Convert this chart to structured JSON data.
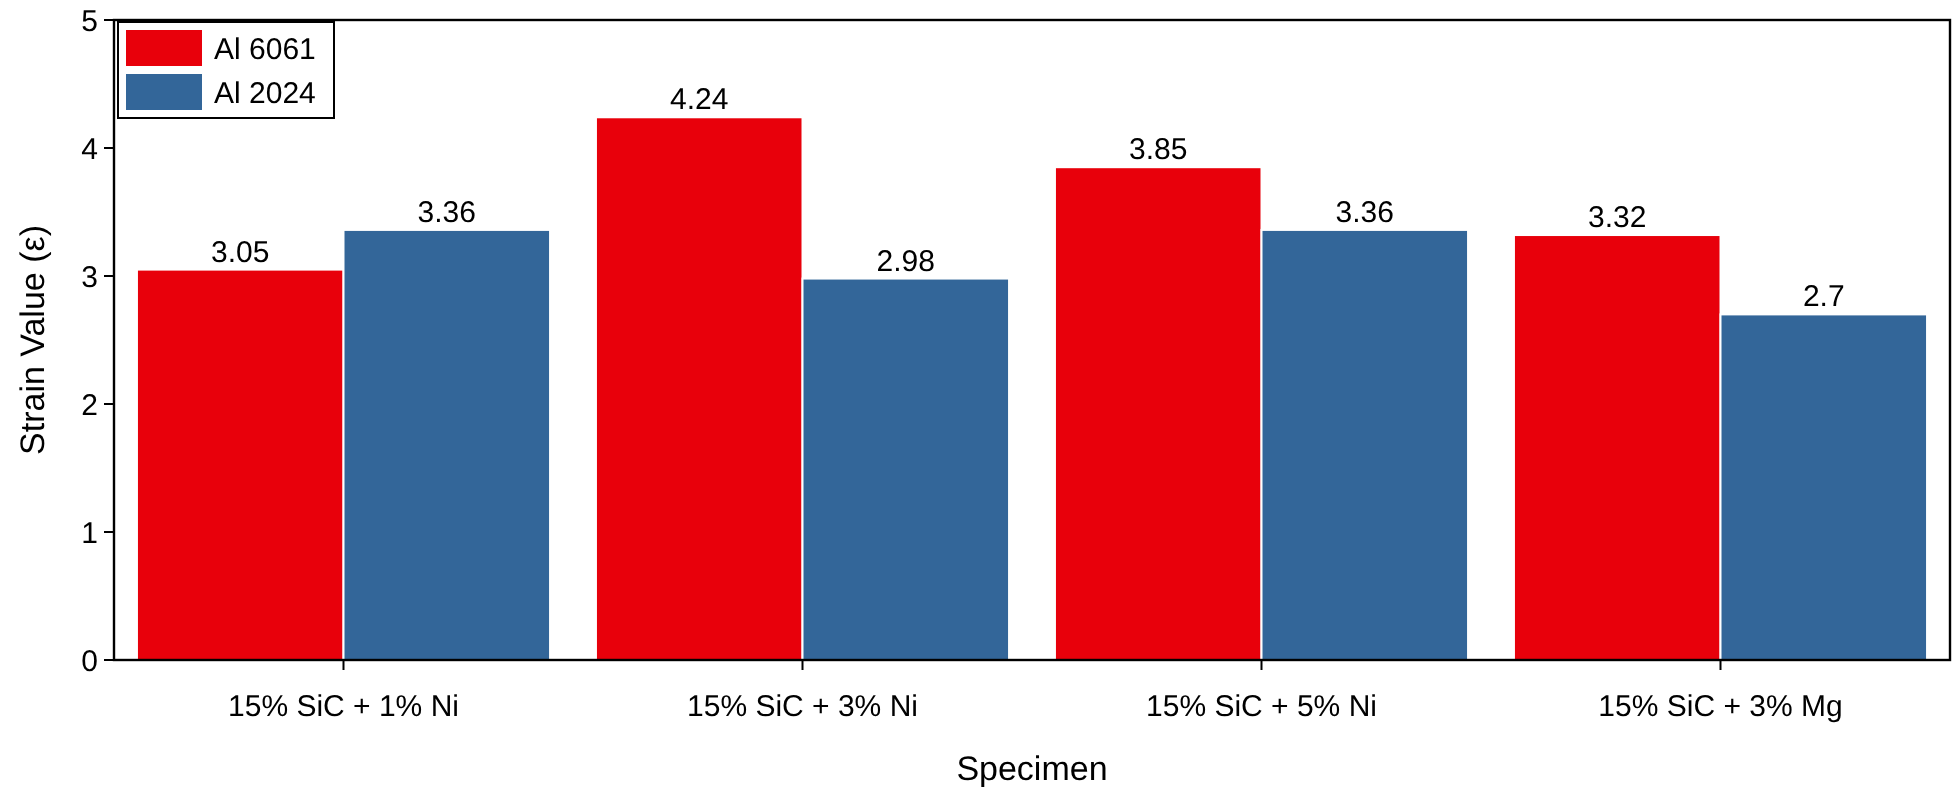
{
  "chart_data": {
    "type": "bar",
    "xlabel": "Specimen",
    "ylabel": "Strain Value (ε)",
    "categories": [
      "15% SiC + 1% Ni",
      "15% SiC + 3% Ni",
      "15% SiC + 5% Ni",
      "15% SiC + 3% Mg"
    ],
    "series": [
      {
        "name": "Al 6061",
        "color": "#e8000b",
        "values": [
          3.05,
          4.24,
          3.85,
          3.32
        ]
      },
      {
        "name": "Al 2024",
        "color": "#336699",
        "values": [
          3.36,
          2.98,
          3.36,
          2.7
        ]
      }
    ],
    "ylim": [
      0,
      5
    ],
    "yticks": [
      0,
      1,
      2,
      3,
      4,
      5
    ],
    "data_labels": true,
    "legend": "top left",
    "grid": false
  }
}
